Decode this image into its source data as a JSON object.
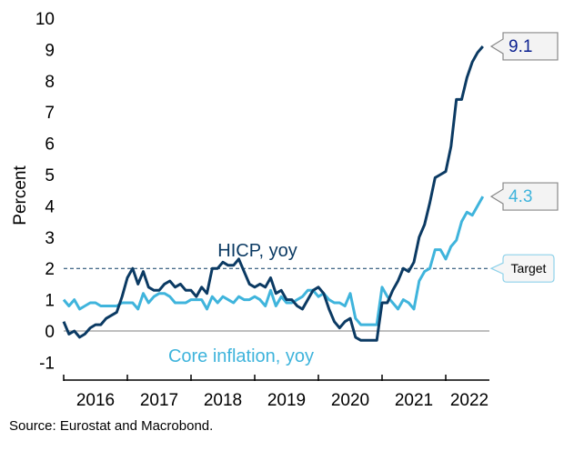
{
  "chart_data": {
    "type": "line",
    "title": "",
    "xlabel": "",
    "ylabel": "Percent",
    "ylim": [
      -1,
      10
    ],
    "yticks": [
      "-1",
      "0",
      "1",
      "2",
      "3",
      "4",
      "5",
      "6",
      "7",
      "8",
      "9",
      "10"
    ],
    "xticks": [
      "2016",
      "2017",
      "2018",
      "2019",
      "2020",
      "2021",
      "2022"
    ],
    "x_start": "2016-01",
    "x_frequency": "monthly",
    "target": {
      "value": 2,
      "label": "Target"
    },
    "series": [
      {
        "name": "HICP, yoy",
        "color": "#0b3a63",
        "end_label": "9.1",
        "values": [
          0.3,
          -0.1,
          0.0,
          -0.2,
          -0.1,
          0.1,
          0.2,
          0.2,
          0.4,
          0.5,
          0.6,
          1.1,
          1.7,
          2.0,
          1.5,
          1.9,
          1.4,
          1.3,
          1.3,
          1.5,
          1.6,
          1.4,
          1.5,
          1.3,
          1.3,
          1.1,
          1.4,
          1.2,
          2.0,
          2.0,
          2.2,
          2.1,
          2.1,
          2.3,
          1.9,
          1.5,
          1.4,
          1.5,
          1.4,
          1.7,
          1.2,
          1.3,
          1.0,
          1.0,
          0.8,
          0.7,
          1.0,
          1.3,
          1.4,
          1.2,
          0.7,
          0.3,
          0.1,
          0.3,
          0.4,
          -0.2,
          -0.3,
          -0.3,
          -0.3,
          -0.3,
          0.9,
          0.9,
          1.3,
          1.6,
          2.0,
          1.9,
          2.2,
          3.0,
          3.4,
          4.1,
          4.9,
          5.0,
          5.1,
          5.9,
          7.4,
          7.4,
          8.1,
          8.6,
          8.9,
          9.1
        ]
      },
      {
        "name": "Core inflation, yoy",
        "color": "#3fb4dc",
        "end_label": "4.3",
        "values": [
          1.0,
          0.8,
          1.0,
          0.7,
          0.8,
          0.9,
          0.9,
          0.8,
          0.8,
          0.8,
          0.8,
          0.9,
          0.9,
          0.9,
          0.7,
          1.2,
          0.9,
          1.1,
          1.2,
          1.2,
          1.1,
          0.9,
          0.9,
          0.9,
          1.0,
          1.0,
          1.0,
          0.7,
          1.1,
          0.9,
          1.1,
          1.0,
          0.9,
          1.1,
          1.0,
          1.0,
          1.1,
          1.0,
          0.8,
          1.3,
          0.8,
          1.1,
          0.9,
          0.9,
          1.0,
          1.1,
          1.3,
          1.3,
          1.1,
          1.2,
          1.0,
          0.9,
          0.9,
          0.8,
          1.2,
          0.4,
          0.2,
          0.2,
          0.2,
          0.2,
          1.4,
          1.1,
          0.9,
          0.7,
          1.0,
          0.9,
          0.7,
          1.6,
          1.9,
          2.0,
          2.6,
          2.6,
          2.3,
          2.7,
          2.9,
          3.5,
          3.8,
          3.7,
          4.0,
          4.3
        ]
      }
    ]
  },
  "source": "Source: Eurostat and Macrobond."
}
